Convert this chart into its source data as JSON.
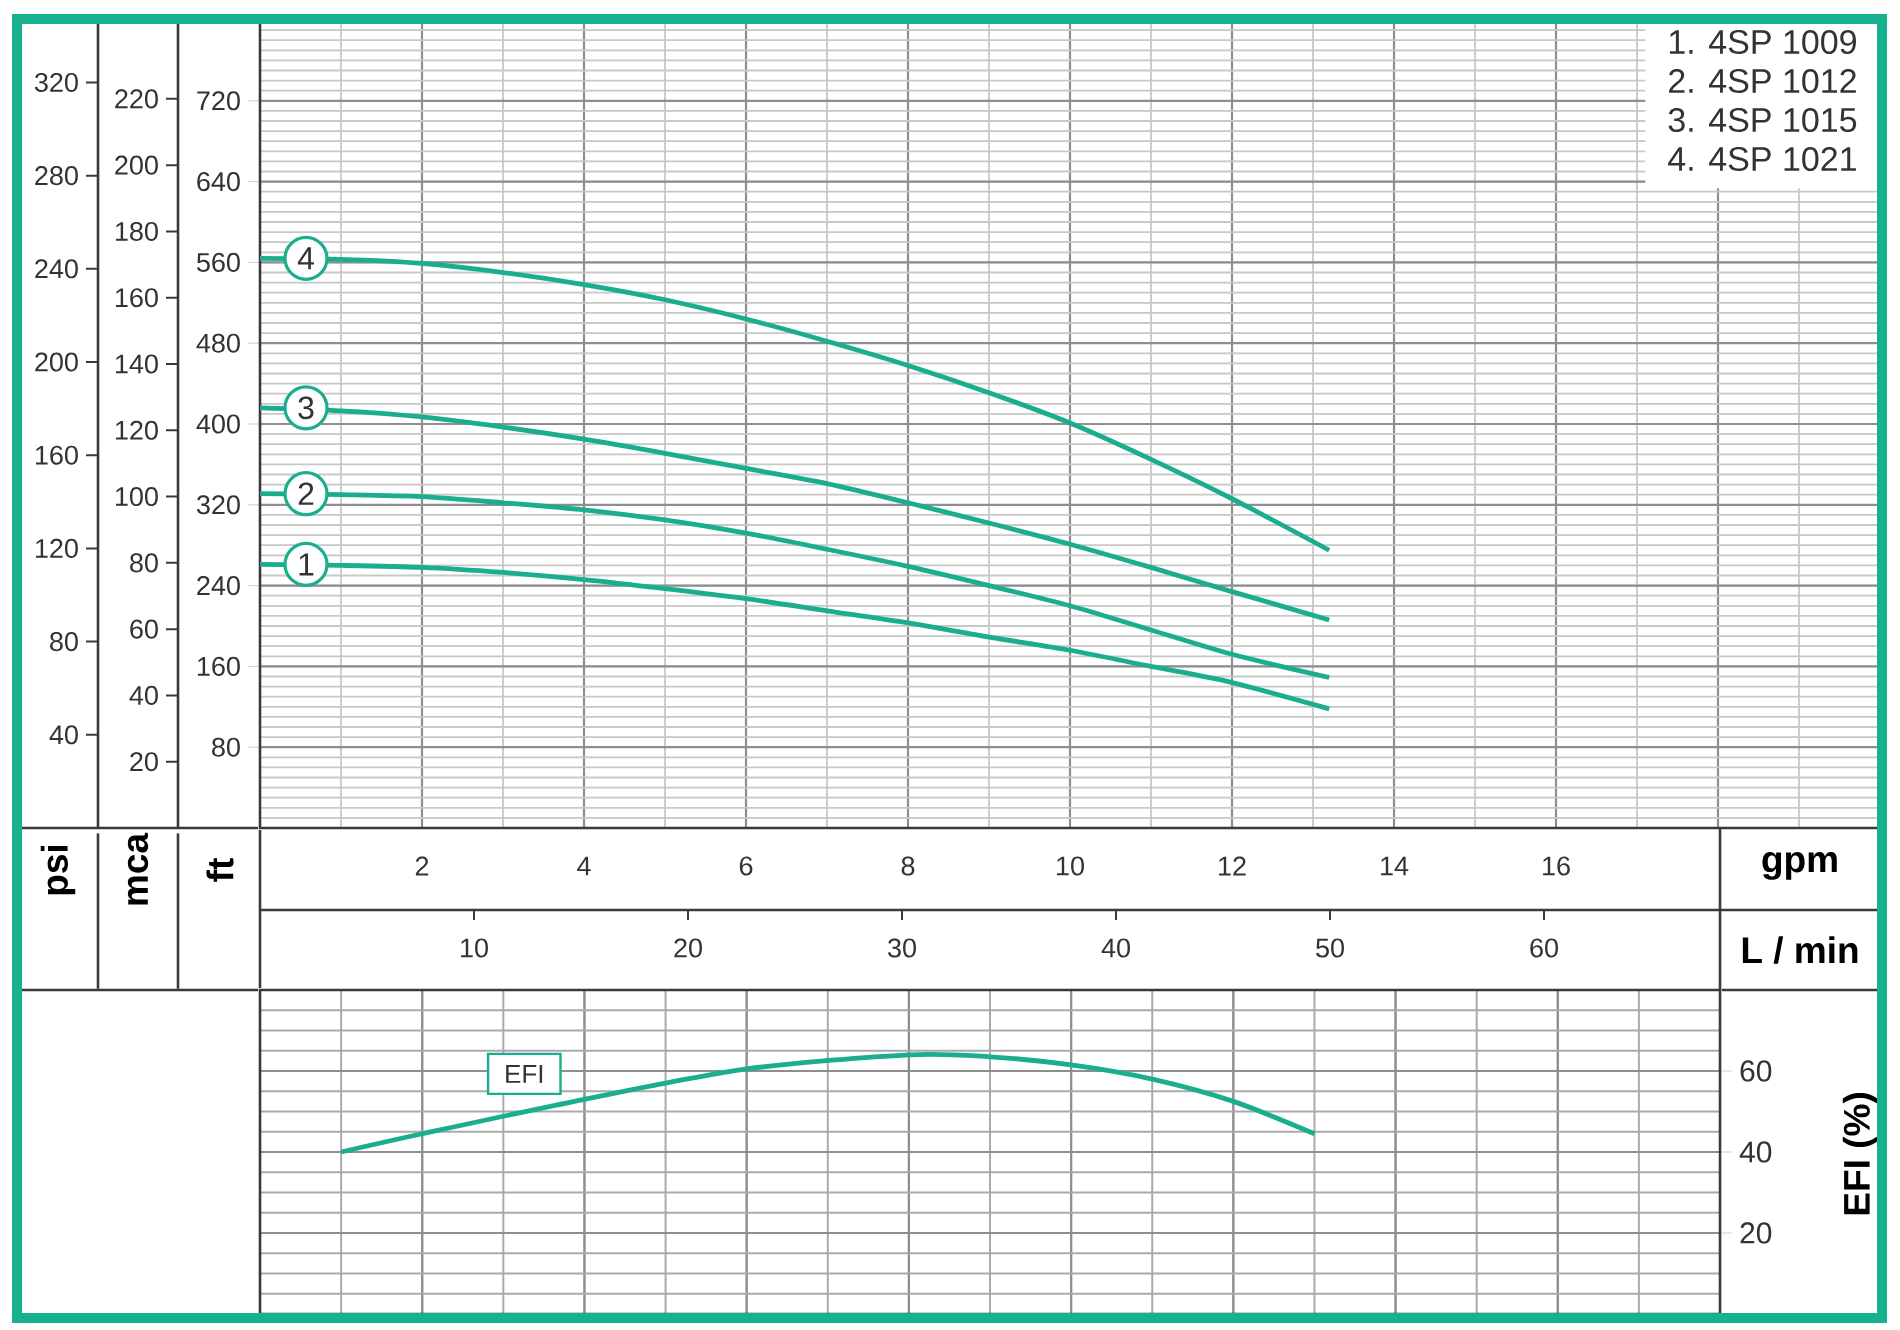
{
  "chart_data": [
    {
      "type": "line",
      "xlabel": "gpm",
      "x2label": "L / min",
      "ylabel": "ft",
      "y2label": "mca",
      "y3label": "psi",
      "xlim": [
        0,
        20
      ],
      "xticks": [
        2,
        4,
        6,
        8,
        10,
        12,
        14,
        16,
        {
          "value": 18,
          "label": null
        }
      ],
      "x2lim": [
        0,
        75.7
      ],
      "x2ticks": [
        10,
        20,
        30,
        40,
        50,
        60
      ],
      "ylim": [
        0,
        800
      ],
      "yticks": [
        80,
        160,
        240,
        320,
        400,
        480,
        560,
        640,
        720
      ],
      "y2lim": [
        0,
        243.8
      ],
      "y2ticks": [
        20,
        40,
        60,
        80,
        100,
        120,
        140,
        160,
        180,
        200,
        220
      ],
      "y3lim": [
        0,
        346.8
      ],
      "y3ticks": [
        40,
        80,
        120,
        160,
        200,
        240,
        280,
        320
      ],
      "grid": true,
      "legend": "left",
      "x": [
        0,
        1,
        2,
        3,
        4,
        5,
        6,
        7,
        8,
        9,
        10,
        11,
        12,
        13.2
      ],
      "series": [
        {
          "name": "1",
          "color": "#1aae8f",
          "values": [
            261,
            260,
            258,
            253,
            246,
            237,
            227,
            215,
            203,
            189,
            176,
            160,
            144,
            118
          ]
        },
        {
          "name": "2",
          "color": "#1aae8f",
          "values": [
            331,
            330,
            328,
            322,
            315,
            305,
            292,
            276,
            259,
            240,
            220,
            196,
            172,
            149
          ]
        },
        {
          "name": "3",
          "color": "#1aae8f",
          "values": [
            416,
            413,
            407,
            397,
            385,
            371,
            356,
            341,
            322,
            302,
            281,
            258,
            234,
            206
          ]
        },
        {
          "name": "4",
          "color": "#1aae8f",
          "values": [
            564,
            563,
            559,
            550,
            538,
            523,
            504,
            482,
            458,
            431,
            401,
            365,
            326,
            275
          ]
        }
      ],
      "annotations": [
        "1. 4SP 1009",
        "2. 4SP 1012",
        "3. 4SP 1015",
        "4. 4SP 1021"
      ]
    },
    {
      "type": "line",
      "ylabel": "EFI (%)",
      "xlim": [
        0,
        18
      ],
      "xticks": [
        2,
        4,
        6,
        8,
        10,
        12,
        14,
        16
      ],
      "tick_labels": "y",
      "ylim": [
        0,
        80
      ],
      "yticks": [
        20,
        40,
        60
      ],
      "grid": true,
      "x": [
        1,
        2,
        4,
        6,
        8,
        9,
        10,
        11,
        12,
        13
      ],
      "series": [
        {
          "name": "EFI",
          "color": "#1aae8f",
          "values": [
            40,
            44.5,
            53,
            60.5,
            64,
            63.5,
            61.5,
            58,
            52.5,
            44.5
          ]
        }
      ]
    }
  ]
}
